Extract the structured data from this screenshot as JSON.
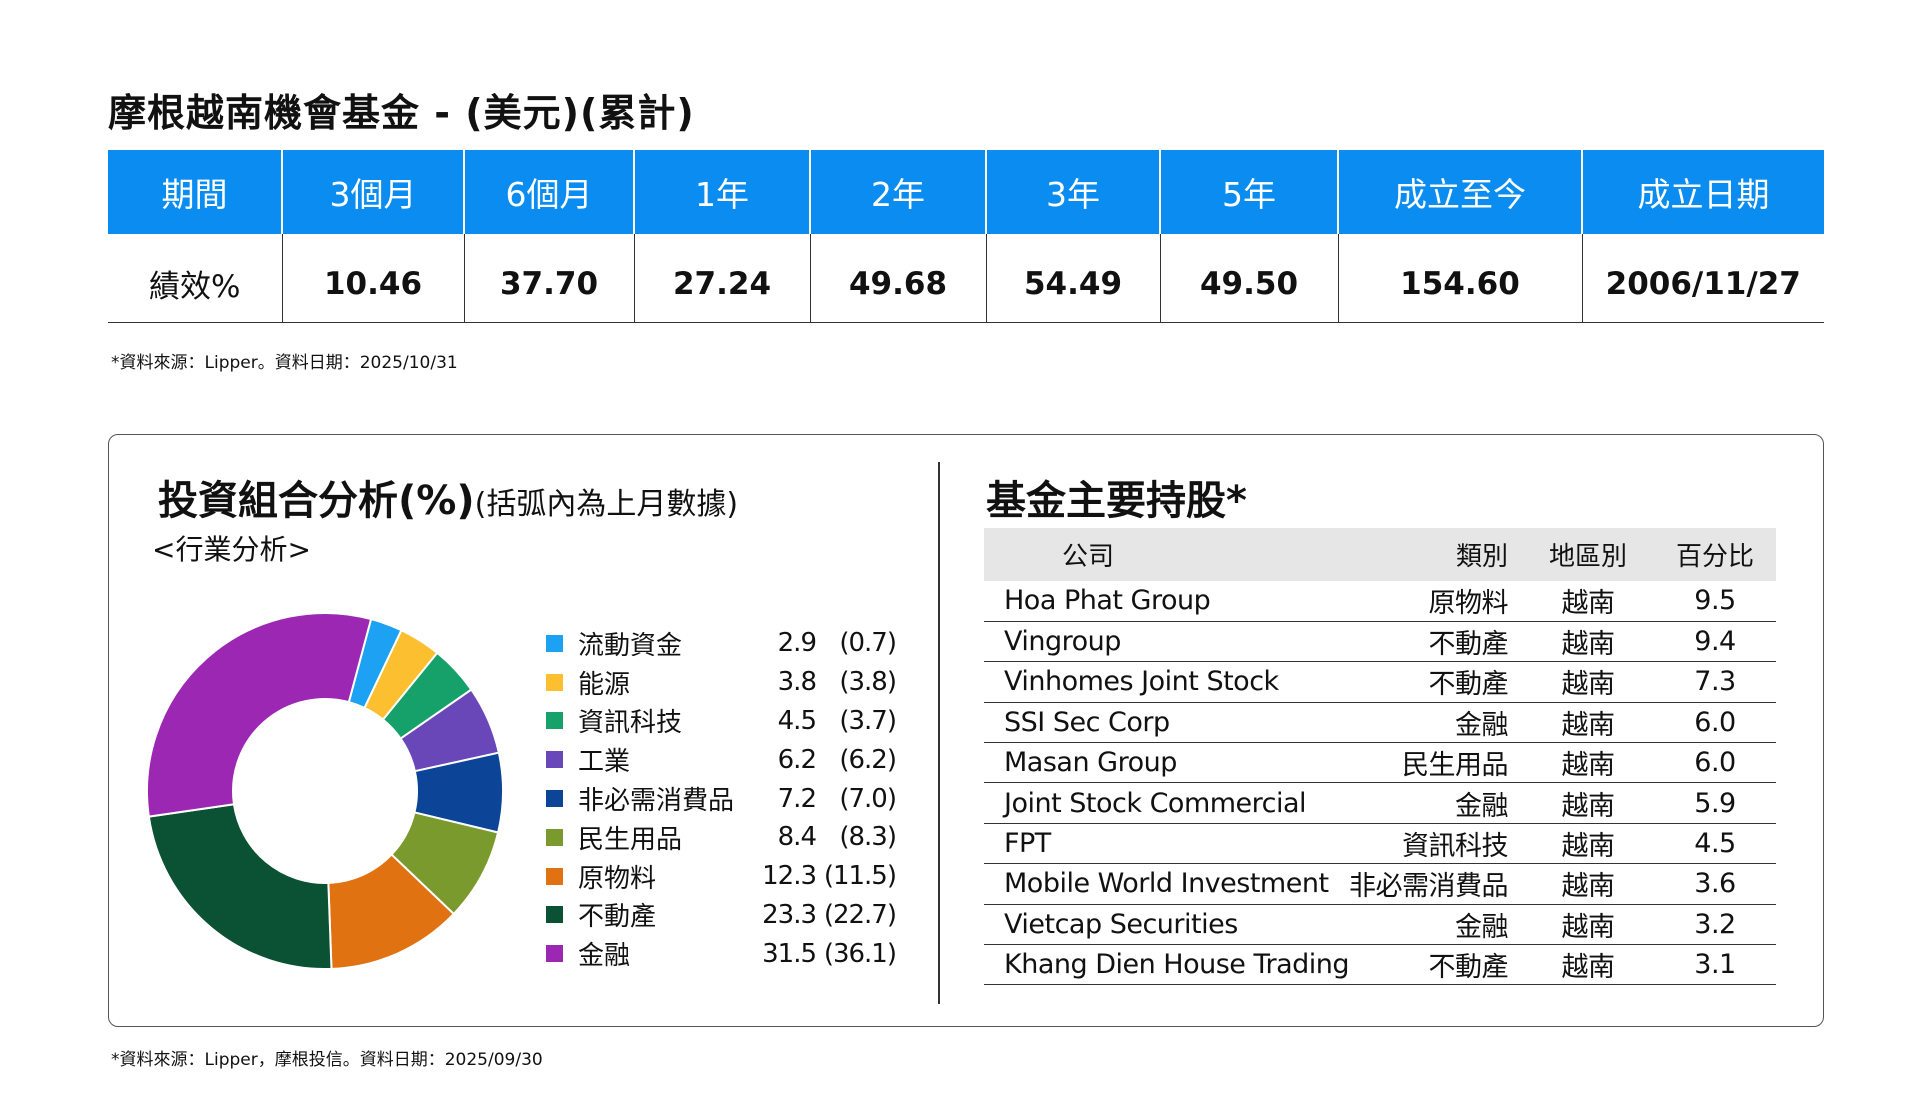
{
  "title": "摩根越南機會基金 - (美元)(累計)",
  "performance": {
    "headers": [
      "期間",
      "3個月",
      "6個月",
      "1年",
      "2年",
      "3年",
      "5年",
      "成立至今",
      "成立日期"
    ],
    "row_label": "績效%",
    "values": [
      "10.46",
      "37.70",
      "27.24",
      "49.68",
      "54.49",
      "49.50",
      "154.60",
      "2006/11/27"
    ],
    "header_color": "#0b8cf0"
  },
  "note1": "*資料來源：Lipper。資料日期：2025/10/31",
  "allocation": {
    "title": "投資組合分析(%)",
    "title_sub": "(括弧內為上月數據)",
    "subtitle": "<行業分析>"
  },
  "chart_data": {
    "type": "pie",
    "donut": true,
    "categories": [
      "流動資金",
      "能源",
      "資訊科技",
      "工業",
      "非必需消費品",
      "民生用品",
      "原物料",
      "不動產",
      "金融"
    ],
    "values": [
      2.9,
      3.8,
      4.5,
      6.2,
      7.2,
      8.4,
      12.3,
      23.3,
      31.5
    ],
    "value_labels": [
      "2.9",
      "3.8",
      "4.5",
      "6.2",
      "7.2",
      "8.4",
      "12.3",
      "23.3",
      "31.5"
    ],
    "previous_labels": [
      "(0.7)",
      "(3.8)",
      "(3.7)",
      "(6.2)",
      "(7.0)",
      "(8.3)",
      "(11.5)",
      "(22.7)",
      "(36.1)"
    ],
    "colors": [
      "#1da1f2",
      "#fbbf2f",
      "#16a06a",
      "#6a47b8",
      "#0c4597",
      "#7a9a2e",
      "#e07212",
      "#0b5133",
      "#9b27b3"
    ]
  },
  "holdings": {
    "title": "基金主要持股*",
    "headers": [
      "公司",
      "類別",
      "地區別",
      "百分比"
    ],
    "rows": [
      {
        "company": "Hoa Phat Group",
        "sector": "原物料",
        "region": "越南",
        "pct": "9.5"
      },
      {
        "company": "Vingroup",
        "sector": "不動產",
        "region": "越南",
        "pct": "9.4"
      },
      {
        "company": "Vinhomes Joint Stock",
        "sector": "不動產",
        "region": "越南",
        "pct": "7.3"
      },
      {
        "company": "SSI Sec Corp",
        "sector": "金融",
        "region": "越南",
        "pct": "6.0"
      },
      {
        "company": "Masan Group",
        "sector": "民生用品",
        "region": "越南",
        "pct": "6.0"
      },
      {
        "company": "Joint Stock Commercial",
        "sector": "金融",
        "region": "越南",
        "pct": "5.9"
      },
      {
        "company": "FPT",
        "sector": "資訊科技",
        "region": "越南",
        "pct": "4.5"
      },
      {
        "company": "Mobile World Investment",
        "sector": "非必需消費品",
        "region": "越南",
        "pct": "3.6"
      },
      {
        "company": "Vietcap Securities",
        "sector": "金融",
        "region": "越南",
        "pct": "3.2"
      },
      {
        "company": "Khang Dien House Trading",
        "sector": "不動產",
        "region": "越南",
        "pct": "3.1"
      }
    ]
  },
  "note2": "*資料來源：Lipper，摩根投信。資料日期：2025/09/30"
}
